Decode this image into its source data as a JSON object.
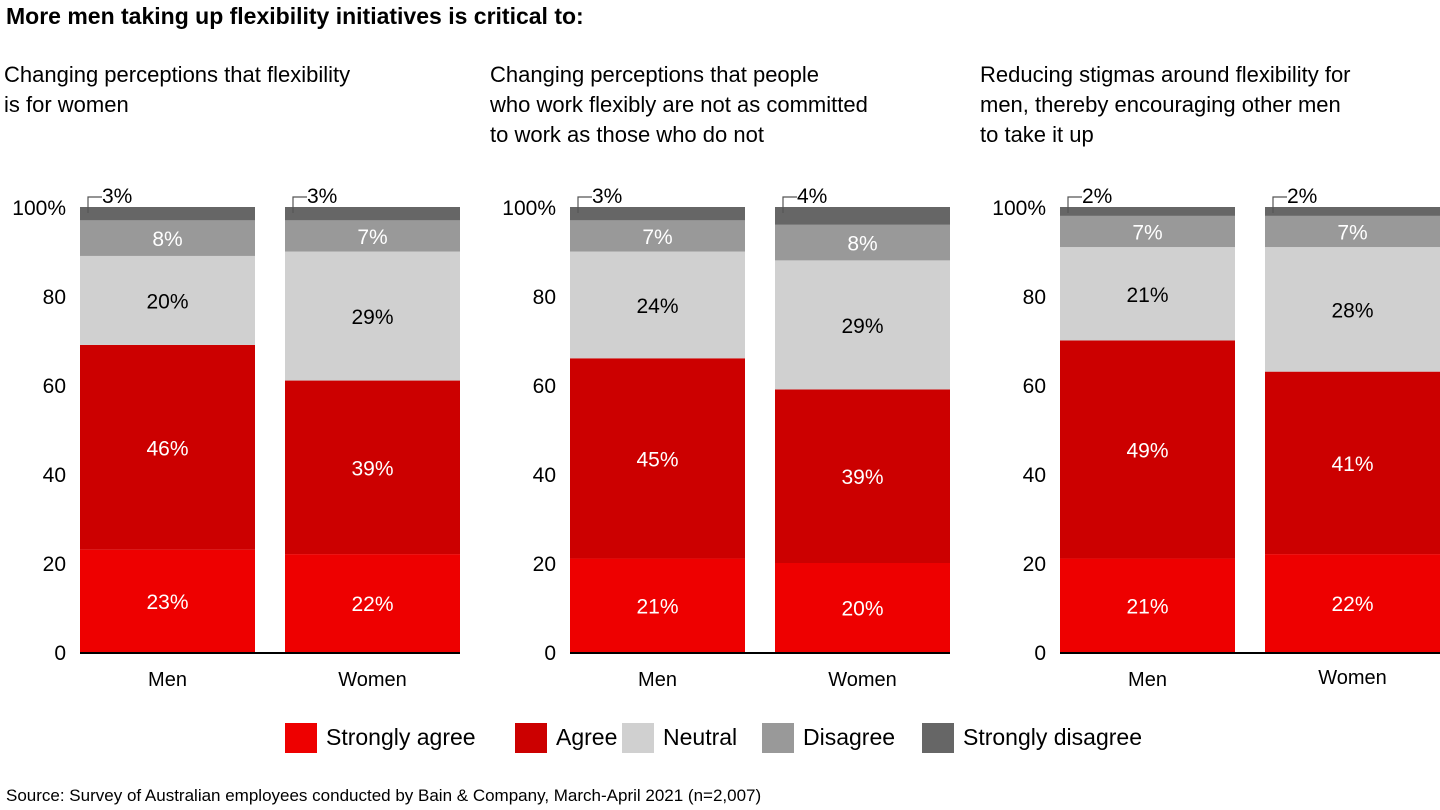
{
  "title": "More men taking up flexibility initiatives is critical to:",
  "source": "Source: Survey of Australian employees conducted by Bain & Company, March-April 2021 (n=2,007)",
  "colors": {
    "Strongly agree": "#ee0000",
    "Agree": "#cc0000",
    "Neutral": "#d0d0d0",
    "Disagree": "#999999",
    "Strongly disagree": "#666666"
  },
  "legend": [
    "Strongly agree",
    "Agree",
    "Neutral",
    "Disagree",
    "Strongly disagree"
  ],
  "panels": [
    {
      "subtitle": "Changing perceptions that flexibility\nis for women"
    },
    {
      "subtitle": "Changing perceptions that people\nwho work flexibly are not as committed\nto work as those who do not"
    },
    {
      "subtitle": "Reducing stigmas around flexibility for\nmen, thereby encouraging other men\nto take it up"
    }
  ],
  "chart_data": [
    {
      "type": "bar",
      "stacked": true,
      "title": "Changing perceptions that flexibility is for women",
      "categories": [
        "Men",
        "Women"
      ],
      "ylim": [
        0,
        100
      ],
      "yticks": [
        "0",
        "20",
        "40",
        "60",
        "80",
        "100%"
      ],
      "series": [
        {
          "name": "Strongly agree",
          "values": [
            23,
            22
          ],
          "labels": [
            "23%",
            "22%"
          ]
        },
        {
          "name": "Agree",
          "values": [
            46,
            39
          ],
          "labels": [
            "46%",
            "39%"
          ]
        },
        {
          "name": "Neutral",
          "values": [
            20,
            29
          ],
          "labels": [
            "20%",
            "29%"
          ]
        },
        {
          "name": "Disagree",
          "values": [
            8,
            7
          ],
          "labels": [
            "8%",
            "7%"
          ]
        },
        {
          "name": "Strongly disagree",
          "values": [
            3,
            3
          ],
          "labels": [
            "3%",
            "3%"
          ]
        }
      ]
    },
    {
      "type": "bar",
      "stacked": true,
      "title": "Changing perceptions that people who work flexibly are not as committed to work as those who do not",
      "categories": [
        "Men",
        "Women"
      ],
      "ylim": [
        0,
        100
      ],
      "yticks": [
        "0",
        "20",
        "40",
        "60",
        "80",
        "100%"
      ],
      "series": [
        {
          "name": "Strongly agree",
          "values": [
            21,
            20
          ],
          "labels": [
            "21%",
            "20%"
          ]
        },
        {
          "name": "Agree",
          "values": [
            45,
            39
          ],
          "labels": [
            "45%",
            "39%"
          ]
        },
        {
          "name": "Neutral",
          "values": [
            24,
            29
          ],
          "labels": [
            "24%",
            "29%"
          ]
        },
        {
          "name": "Disagree",
          "values": [
            7,
            8
          ],
          "labels": [
            "7%",
            "8%"
          ]
        },
        {
          "name": "Strongly disagree",
          "values": [
            3,
            4
          ],
          "labels": [
            "3%",
            "4%"
          ]
        }
      ]
    },
    {
      "type": "bar",
      "stacked": true,
      "title": "Reducing stigmas around flexibility for men, thereby encouraging other men to take it up",
      "categories": [
        "Men",
        "Women"
      ],
      "ylim": [
        0,
        100
      ],
      "yticks": [
        "0",
        "20",
        "40",
        "60",
        "80",
        "100%"
      ],
      "series": [
        {
          "name": "Strongly agree",
          "values": [
            21,
            22
          ],
          "labels": [
            "21%",
            "22%"
          ]
        },
        {
          "name": "Agree",
          "values": [
            49,
            41
          ],
          "labels": [
            "49%",
            "41%"
          ]
        },
        {
          "name": "Neutral",
          "values": [
            21,
            28
          ],
          "labels": [
            "21%",
            "28%"
          ]
        },
        {
          "name": "Disagree",
          "values": [
            7,
            7
          ],
          "labels": [
            "7%",
            "7%"
          ]
        },
        {
          "name": "Strongly disagree",
          "values": [
            2,
            2
          ],
          "labels": [
            "2%",
            "2%"
          ]
        }
      ]
    }
  ]
}
